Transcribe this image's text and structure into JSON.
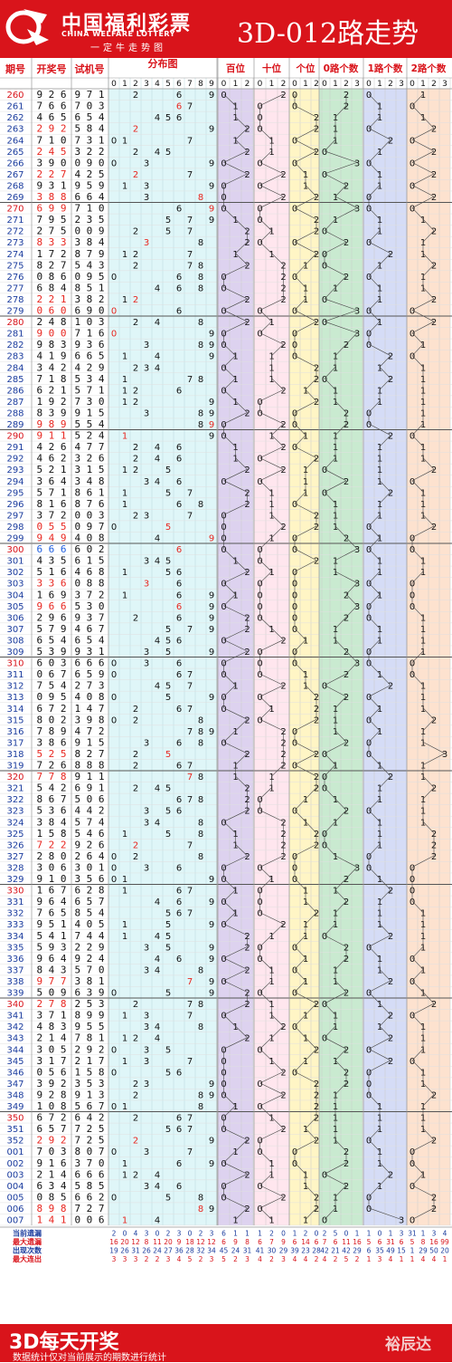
{
  "header": {
    "logo": "中国福利彩票",
    "logo_en": "CHINA WELFARE LOTTERY",
    "logo_sub": "一定牛走势图",
    "title": "3D-012路走势"
  },
  "footer": {
    "title": "3D每天开奖",
    "note": "数据统计仅对当前展示的期数进行统计",
    "watermark": "裕辰达"
  },
  "colors": {
    "red": "#d9141b",
    "draw_red": "#e8261f",
    "draw_blue": "#1f5fe0",
    "text": "#111"
  },
  "chart_data": {
    "type": "table",
    "title": "3D-012路走势",
    "columns": [
      "期号",
      "开奖号",
      "试机号",
      "分布图",
      "百位",
      "十位",
      "个位",
      "0路个数",
      "1路个数",
      "2路个数"
    ],
    "sub_columns": {
      "分布图": [
        "0",
        "1",
        "2",
        "3",
        "4",
        "5",
        "6",
        "7",
        "8",
        "9"
      ],
      "百位": [
        "0",
        "1",
        "2"
      ],
      "十位": [
        "0",
        "1",
        "2"
      ],
      "个位": [
        "0",
        "1",
        "2"
      ],
      "0路个数": [
        "0",
        "1",
        "2",
        "3"
      ],
      "1路个数": [
        "0",
        "1",
        "2",
        "3"
      ],
      "2路个数": [
        "0",
        "1",
        "2",
        "3"
      ]
    },
    "rows": [
      [
        "260",
        "926",
        "971"
      ],
      [
        "261",
        "766",
        "703"
      ],
      [
        "262",
        "465",
        "654"
      ],
      [
        "263",
        "292",
        "584"
      ],
      [
        "264",
        "710",
        "731"
      ],
      [
        "265",
        "245",
        "322"
      ],
      [
        "266",
        "390",
        "090"
      ],
      [
        "267",
        "227",
        "425"
      ],
      [
        "268",
        "931",
        "959"
      ],
      [
        "269",
        "388",
        "664"
      ],
      [
        "270",
        "699",
        "710"
      ],
      [
        "271",
        "795",
        "235"
      ],
      [
        "272",
        "275",
        "009"
      ],
      [
        "273",
        "833",
        "384"
      ],
      [
        "274",
        "172",
        "879"
      ],
      [
        "275",
        "827",
        "543"
      ],
      [
        "276",
        "086",
        "095"
      ],
      [
        "277",
        "684",
        "851"
      ],
      [
        "278",
        "221",
        "382"
      ],
      [
        "279",
        "060",
        "690"
      ],
      [
        "280",
        "248",
        "103"
      ],
      [
        "281",
        "900",
        "716"
      ],
      [
        "282",
        "983",
        "936"
      ],
      [
        "283",
        "419",
        "665"
      ],
      [
        "284",
        "342",
        "429"
      ],
      [
        "285",
        "718",
        "534"
      ],
      [
        "286",
        "621",
        "571"
      ],
      [
        "287",
        "192",
        "730"
      ],
      [
        "288",
        "839",
        "915"
      ],
      [
        "289",
        "989",
        "554"
      ],
      [
        "290",
        "911",
        "524"
      ],
      [
        "291",
        "426",
        "477"
      ],
      [
        "292",
        "462",
        "326"
      ],
      [
        "293",
        "521",
        "315"
      ],
      [
        "294",
        "364",
        "348"
      ],
      [
        "295",
        "571",
        "861"
      ],
      [
        "296",
        "816",
        "876"
      ],
      [
        "297",
        "372",
        "003"
      ],
      [
        "298",
        "055",
        "097"
      ],
      [
        "299",
        "949",
        "408"
      ],
      [
        "300",
        "666",
        "602"
      ],
      [
        "301",
        "435",
        "615"
      ],
      [
        "302",
        "516",
        "468"
      ],
      [
        "303",
        "336",
        "088"
      ],
      [
        "304",
        "169",
        "372"
      ],
      [
        "305",
        "966",
        "530"
      ],
      [
        "306",
        "296",
        "937"
      ],
      [
        "307",
        "579",
        "467"
      ],
      [
        "308",
        "654",
        "654"
      ],
      [
        "309",
        "539",
        "931"
      ],
      [
        "310",
        "603",
        "666"
      ],
      [
        "311",
        "067",
        "659"
      ],
      [
        "312",
        "754",
        "273"
      ],
      [
        "313",
        "095",
        "408"
      ],
      [
        "314",
        "672",
        "147"
      ],
      [
        "315",
        "802",
        "398"
      ],
      [
        "316",
        "789",
        "472"
      ],
      [
        "317",
        "386",
        "915"
      ],
      [
        "318",
        "525",
        "827"
      ],
      [
        "319",
        "726",
        "888"
      ],
      [
        "320",
        "778",
        "911"
      ],
      [
        "321",
        "542",
        "691"
      ],
      [
        "322",
        "867",
        "506"
      ],
      [
        "323",
        "536",
        "442"
      ],
      [
        "324",
        "384",
        "574"
      ],
      [
        "325",
        "158",
        "546"
      ],
      [
        "326",
        "722",
        "926"
      ],
      [
        "327",
        "280",
        "264"
      ],
      [
        "328",
        "306",
        "301"
      ],
      [
        "329",
        "910",
        "356"
      ],
      [
        "330",
        "167",
        "628"
      ],
      [
        "331",
        "964",
        "657"
      ],
      [
        "332",
        "765",
        "854"
      ],
      [
        "333",
        "951",
        "405"
      ],
      [
        "334",
        "541",
        "744"
      ],
      [
        "335",
        "593",
        "229"
      ],
      [
        "336",
        "964",
        "924"
      ],
      [
        "337",
        "843",
        "570"
      ],
      [
        "338",
        "977",
        "381"
      ],
      [
        "339",
        "509",
        "639"
      ],
      [
        "340",
        "278",
        "253"
      ],
      [
        "341",
        "371",
        "899"
      ],
      [
        "342",
        "483",
        "955"
      ],
      [
        "343",
        "214",
        "781"
      ],
      [
        "344",
        "305",
        "292"
      ],
      [
        "345",
        "317",
        "217"
      ],
      [
        "346",
        "056",
        "158"
      ],
      [
        "347",
        "392",
        "353"
      ],
      [
        "348",
        "928",
        "913"
      ],
      [
        "349",
        "108",
        "567"
      ],
      [
        "350",
        "672",
        "642"
      ],
      [
        "351",
        "657",
        "725"
      ],
      [
        "352",
        "292",
        "725"
      ],
      [
        "001",
        "703",
        "807"
      ],
      [
        "002",
        "916",
        "370"
      ],
      [
        "003",
        "214",
        "666"
      ],
      [
        "004",
        "634",
        "585"
      ],
      [
        "005",
        "085",
        "662"
      ],
      [
        "006",
        "898",
        "727"
      ],
      [
        "007",
        "141",
        "006"
      ]
    ],
    "red_draw_rows": [
      "263",
      "265",
      "267",
      "269",
      "270",
      "273",
      "278",
      "279",
      "281",
      "289",
      "290",
      "298",
      "299",
      "303",
      "305",
      "318",
      "320",
      "326",
      "338",
      "340",
      "352",
      "006",
      "007"
    ],
    "blue_draw_rows": [
      "300"
    ],
    "stats": {
      "labels": [
        "当前遗漏",
        "最大遗漏",
        "出现次数",
        "最大连出"
      ],
      "当前遗漏": [
        "2",
        "0",
        "4",
        "3",
        "0",
        "2",
        "3",
        "0",
        "2",
        "3",
        "6",
        "1",
        "1",
        "1",
        "2",
        "0",
        "1",
        "2",
        "0",
        "2",
        "5",
        "0",
        "1",
        "1",
        "0",
        "1",
        "3",
        "31",
        "1",
        "3",
        "4",
        "0",
        "6",
        "1",
        "4",
        "1"
      ],
      "最大遗漏": [
        "16",
        "20",
        "12",
        "8",
        "11",
        "20",
        "9",
        "18",
        "12",
        "12",
        "6",
        "9",
        "8",
        "6",
        "7",
        "9",
        "6",
        "14",
        "6",
        "7",
        "6",
        "11",
        "16",
        "5",
        "6",
        "31",
        "6",
        "5",
        "8",
        "16",
        "99",
        "6",
        "4",
        "18",
        "5",
        "8"
      ],
      "出现次数": [
        "19",
        "26",
        "31",
        "26",
        "24",
        "27",
        "36",
        "28",
        "32",
        "34",
        "45",
        "24",
        "31",
        "41",
        "30",
        "29",
        "39",
        "23",
        "28",
        "42",
        "21",
        "42",
        "29",
        "6",
        "35",
        "49",
        "15",
        "1",
        "29",
        "50",
        "20",
        "1",
        "",
        "",
        "",
        ""
      ],
      "最大连出": [
        "3",
        "3",
        "3",
        "2",
        "2",
        "3",
        "4",
        "5",
        "2",
        "3",
        "5",
        "2",
        "3",
        "4",
        "2",
        "3",
        "4",
        "4",
        "2",
        "4",
        "2",
        "5",
        "2",
        "1",
        "3",
        "4",
        "1",
        "1",
        "4",
        "4",
        "1",
        "1",
        "",
        "",
        "",
        ""
      ]
    }
  }
}
